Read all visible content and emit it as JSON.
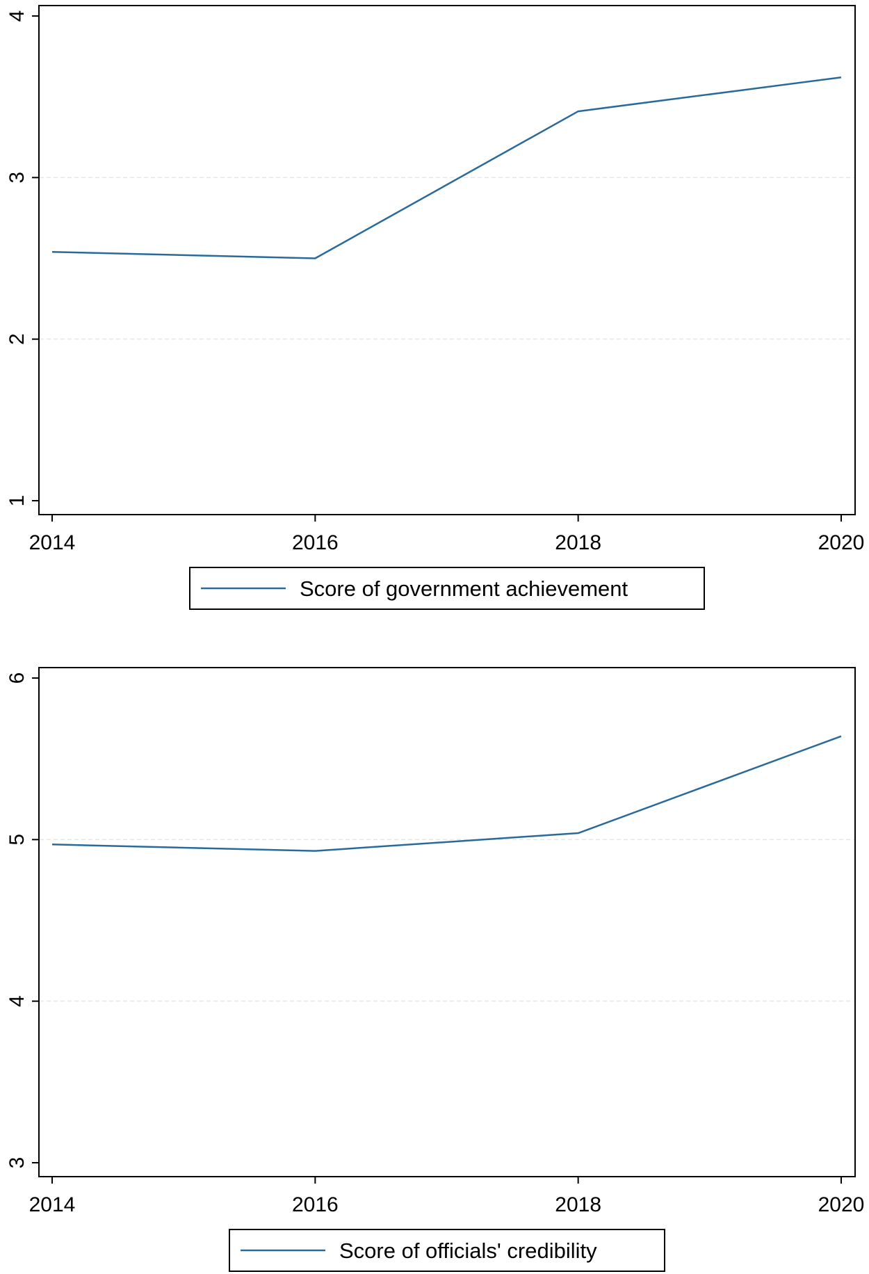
{
  "chart_data": [
    {
      "type": "line",
      "title": "",
      "xlabel": "",
      "ylabel": "",
      "x": [
        2014,
        2016,
        2018,
        2020
      ],
      "xticks": [
        "2014",
        "2016",
        "2018",
        "2020"
      ],
      "yticks": [
        "1",
        "2",
        "3",
        "4"
      ],
      "ylim": [
        1,
        4
      ],
      "xlim": [
        2014,
        2020
      ],
      "grid": true,
      "legend_position": "bottom",
      "series": [
        {
          "name": "Score of government achievement",
          "values": [
            2.54,
            2.5,
            3.41,
            3.62
          ],
          "color": "#2a6a9b"
        }
      ]
    },
    {
      "type": "line",
      "title": "",
      "xlabel": "",
      "ylabel": "",
      "x": [
        2014,
        2016,
        2018,
        2020
      ],
      "xticks": [
        "2014",
        "2016",
        "2018",
        "2020"
      ],
      "yticks": [
        "3",
        "4",
        "5",
        "6"
      ],
      "ylim": [
        3,
        6
      ],
      "xlim": [
        2014,
        2020
      ],
      "grid": true,
      "legend_position": "bottom",
      "series": [
        {
          "name": "Score of officials' credibility",
          "values": [
            4.97,
            4.93,
            5.04,
            5.64
          ],
          "color": "#2a6a9b"
        }
      ]
    }
  ]
}
